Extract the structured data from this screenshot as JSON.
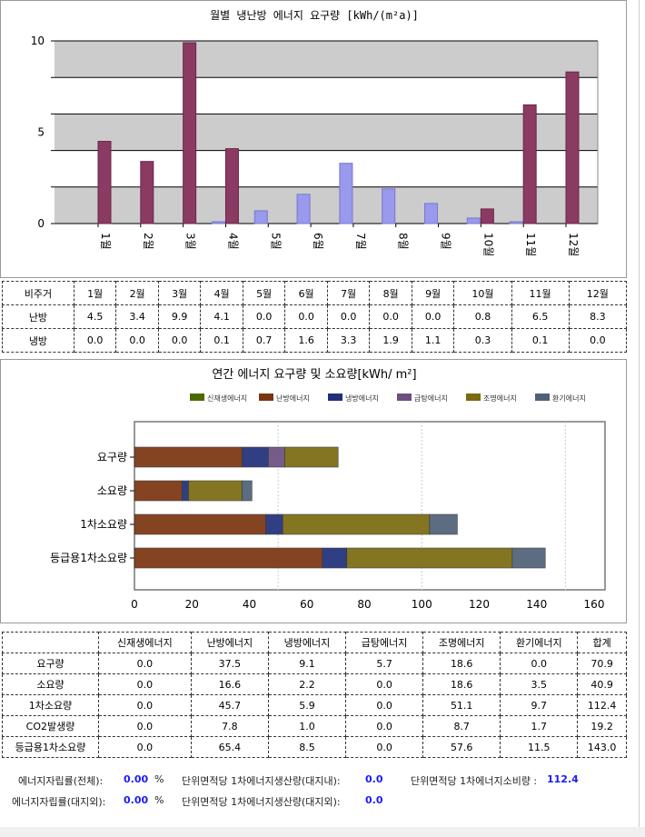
{
  "monthly_chart": {
    "title": "월별 냉난방 에너지 요구량 [kWh/(m²a)]",
    "y_ticks": [
      "0",
      "5",
      "10"
    ],
    "ylim": [
      0,
      10
    ],
    "months": [
      "1월",
      "2월",
      "3월",
      "4월",
      "5월",
      "6월",
      "7월",
      "8월",
      "9월",
      "10월",
      "11월",
      "12월"
    ],
    "colors": {
      "heating": "#8b3a62",
      "cooling": "#9999ee"
    }
  },
  "monthly_table": {
    "header": [
      "비주거",
      "1월",
      "2월",
      "3월",
      "4월",
      "5월",
      "6월",
      "7월",
      "8월",
      "9월",
      "10월",
      "11월",
      "12월"
    ],
    "rows": [
      {
        "label": "난방",
        "values": [
          "4.5",
          "3.4",
          "9.9",
          "4.1",
          "0.0",
          "0.0",
          "0.0",
          "0.0",
          "0.0",
          "0.8",
          "6.5",
          "8.3"
        ]
      },
      {
        "label": "냉방",
        "values": [
          "0.0",
          "0.0",
          "0.0",
          "0.1",
          "0.7",
          "1.6",
          "3.3",
          "1.9",
          "1.1",
          "0.3",
          "0.1",
          "0.0"
        ]
      }
    ]
  },
  "chart_data": {
    "type": "bar",
    "title": "연간 에너지 요구량 및 소요량[kWh/ m²]",
    "orientation": "horizontal-stacked",
    "categories": [
      "요구량",
      "소요량",
      "1차소요량",
      "등급용1차소요량"
    ],
    "xlim": [
      0,
      160
    ],
    "x_ticks": [
      "0",
      "20",
      "40",
      "60",
      "80",
      "100",
      "120",
      "140",
      "160"
    ],
    "series": [
      {
        "name": "신재생에너지",
        "color": "#4a6a00",
        "values": [
          0.0,
          0.0,
          0.0,
          0.0
        ]
      },
      {
        "name": "난방에너지",
        "color": "#7a3510",
        "values": [
          37.5,
          16.6,
          45.7,
          65.4
        ]
      },
      {
        "name": "냉방에너지",
        "color": "#1f2f7a",
        "values": [
          9.1,
          2.2,
          5.9,
          8.5
        ]
      },
      {
        "name": "급탕에너지",
        "color": "#6a4f80",
        "values": [
          5.7,
          0.0,
          0.0,
          0.0
        ]
      },
      {
        "name": "조명에너지",
        "color": "#7a6a10",
        "values": [
          18.6,
          18.6,
          51.1,
          57.6
        ]
      },
      {
        "name": "환기에너지",
        "color": "#4f6178",
        "values": [
          0.0,
          3.5,
          9.7,
          11.5
        ]
      }
    ]
  },
  "annual_table": {
    "header": [
      "",
      "신재생에너지",
      "난방에너지",
      "냉방에너지",
      "급탕에너지",
      "조명에너지",
      "환기에너지",
      "합계"
    ],
    "rows": [
      [
        "요구량",
        "0.0",
        "37.5",
        "9.1",
        "5.7",
        "18.6",
        "0.0",
        "70.9"
      ],
      [
        "소요량",
        "0.0",
        "16.6",
        "2.2",
        "0.0",
        "18.6",
        "3.5",
        "40.9"
      ],
      [
        "1차소요량",
        "0.0",
        "45.7",
        "5.9",
        "0.0",
        "51.1",
        "9.7",
        "112.4"
      ],
      [
        "CO2발생량",
        "0.0",
        "7.8",
        "1.0",
        "0.0",
        "8.7",
        "1.7",
        "19.2"
      ],
      [
        "등급용1차소요량",
        "0.0",
        "65.4",
        "8.5",
        "0.0",
        "57.6",
        "11.5",
        "143.0"
      ]
    ]
  },
  "summary": {
    "self_sufficiency_total_label": "에너지자립률(전체):",
    "self_sufficiency_total": "0.00",
    "pct1": "%",
    "self_sufficiency_offsite_label": "에너지자립률(대지외):",
    "self_sufficiency_offsite": "0.00",
    "pct2": "%",
    "prod_onsite_label": "단위면적당 1차에너지생산량(대지내):",
    "prod_onsite": "0.0",
    "prod_offsite_label": "단위면적당 1차에너지생산량(대지외):",
    "prod_offsite": "0.0",
    "consumption_label": "단위면적당 1차에너지소비량 :",
    "consumption": "112.4"
  }
}
